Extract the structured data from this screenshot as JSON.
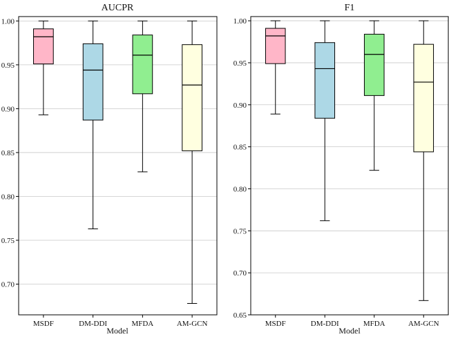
{
  "chart_data": [
    {
      "type": "boxplot",
      "title": "AUCPR",
      "xlabel": "Model",
      "ylabel": "",
      "ylim": [
        0.665,
        1.005
      ],
      "yticks": [
        0.7,
        0.75,
        0.8,
        0.85,
        0.9,
        0.95,
        1.0
      ],
      "ytick_labels": [
        "0.70",
        "0.75",
        "0.80",
        "0.85",
        "0.90",
        "0.95",
        "1.00"
      ],
      "grid": true,
      "categories": [
        "MSDF",
        "DM-DDI",
        "MFDA",
        "AM-GCN"
      ],
      "colors": [
        "#ffb6c8",
        "#add8e6",
        "#90ee90",
        "#ffffe0"
      ],
      "boxes": [
        {
          "min": 0.893,
          "q1": 0.951,
          "median": 0.982,
          "q3": 0.991,
          "max": 1.0
        },
        {
          "min": 0.763,
          "q1": 0.887,
          "median": 0.944,
          "q3": 0.974,
          "max": 1.0
        },
        {
          "min": 0.828,
          "q1": 0.917,
          "median": 0.961,
          "q3": 0.984,
          "max": 1.0
        },
        {
          "min": 0.678,
          "q1": 0.852,
          "median": 0.927,
          "q3": 0.973,
          "max": 1.0
        }
      ]
    },
    {
      "type": "boxplot",
      "title": "F1",
      "xlabel": "Model",
      "ylabel": "",
      "ylim": [
        0.65,
        1.005
      ],
      "yticks": [
        0.65,
        0.7,
        0.75,
        0.8,
        0.85,
        0.9,
        0.95,
        1.0
      ],
      "ytick_labels": [
        "0.65",
        "0.70",
        "0.75",
        "0.80",
        "0.85",
        "0.90",
        "0.95",
        "1.00"
      ],
      "grid": true,
      "categories": [
        "MSDF",
        "DM-DDI",
        "MFDA",
        "AM-GCN"
      ],
      "colors": [
        "#ffb6c8",
        "#add8e6",
        "#90ee90",
        "#ffffe0"
      ],
      "boxes": [
        {
          "min": 0.889,
          "q1": 0.949,
          "median": 0.982,
          "q3": 0.991,
          "max": 1.0
        },
        {
          "min": 0.762,
          "q1": 0.884,
          "median": 0.943,
          "q3": 0.974,
          "max": 1.0
        },
        {
          "min": 0.822,
          "q1": 0.911,
          "median": 0.96,
          "q3": 0.984,
          "max": 1.0
        },
        {
          "min": 0.667,
          "q1": 0.844,
          "median": 0.927,
          "q3": 0.972,
          "max": 1.0
        }
      ]
    }
  ]
}
